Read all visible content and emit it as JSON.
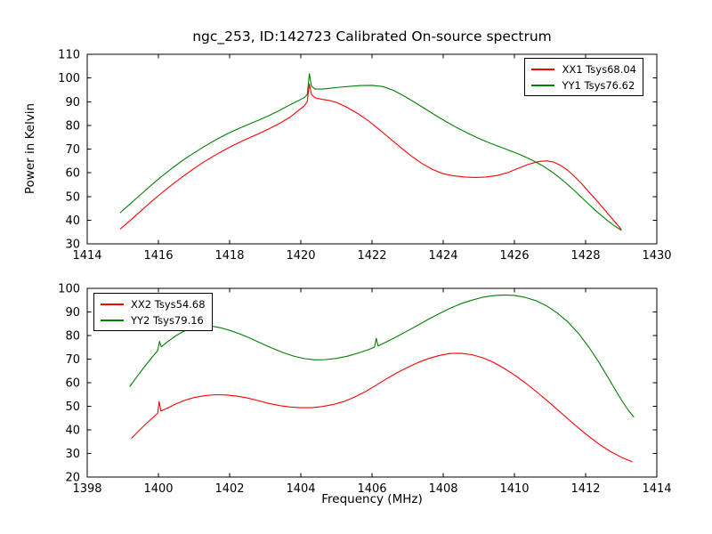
{
  "figure": {
    "title": "ngc_253, ID:142723 Calibrated On-source spectrum",
    "background": "#ffffff",
    "axis_color": "#000000"
  },
  "chart_data": [
    {
      "id": "top-spectrum",
      "type": "line",
      "title": "ngc_253, ID:142723 Calibrated On-source spectrum",
      "xlabel": "",
      "ylabel": "Power in Kelvin",
      "xlim": [
        1414,
        1430
      ],
      "ylim": [
        30,
        110
      ],
      "xticks": [
        1414,
        1416,
        1418,
        1420,
        1422,
        1424,
        1426,
        1428,
        1430
      ],
      "yticks": [
        30,
        40,
        50,
        60,
        70,
        80,
        90,
        100,
        110
      ],
      "grid": false,
      "legend_position": "top-right",
      "series": [
        {
          "name": "XX1 Tsys68.04",
          "color": "#ff0000",
          "points": [
            [
              1414.93,
              36.3
            ],
            [
              1415.2,
              39.8
            ],
            [
              1415.5,
              43.8
            ],
            [
              1415.8,
              47.8
            ],
            [
              1416.1,
              51.6
            ],
            [
              1416.4,
              55.2
            ],
            [
              1416.7,
              58.6
            ],
            [
              1417.0,
              61.8
            ],
            [
              1417.3,
              64.8
            ],
            [
              1417.6,
              67.5
            ],
            [
              1417.9,
              70.0
            ],
            [
              1418.2,
              72.3
            ],
            [
              1418.5,
              74.4
            ],
            [
              1418.8,
              76.4
            ],
            [
              1419.1,
              78.5
            ],
            [
              1419.4,
              80.8
            ],
            [
              1419.7,
              83.5
            ],
            [
              1419.95,
              86.5
            ],
            [
              1420.1,
              88.3
            ],
            [
              1420.18,
              90.0
            ],
            [
              1420.24,
              97.5
            ],
            [
              1420.3,
              93.0
            ],
            [
              1420.4,
              91.6
            ],
            [
              1420.6,
              91.0
            ],
            [
              1420.8,
              90.5
            ],
            [
              1421.0,
              89.7
            ],
            [
              1421.3,
              87.6
            ],
            [
              1421.6,
              85.0
            ],
            [
              1421.9,
              81.9
            ],
            [
              1422.2,
              78.3
            ],
            [
              1422.5,
              74.5
            ],
            [
              1422.8,
              70.7
            ],
            [
              1423.1,
              67.1
            ],
            [
              1423.4,
              63.9
            ],
            [
              1423.7,
              61.4
            ],
            [
              1424.0,
              59.6
            ],
            [
              1424.3,
              58.7
            ],
            [
              1424.6,
              58.2
            ],
            [
              1424.9,
              58.0
            ],
            [
              1425.2,
              58.2
            ],
            [
              1425.5,
              58.8
            ],
            [
              1425.8,
              60.0
            ],
            [
              1426.1,
              61.8
            ],
            [
              1426.4,
              63.6
            ],
            [
              1426.7,
              64.8
            ],
            [
              1426.9,
              65.0
            ],
            [
              1427.1,
              64.5
            ],
            [
              1427.3,
              63.1
            ],
            [
              1427.5,
              61.0
            ],
            [
              1427.7,
              58.3
            ],
            [
              1427.9,
              55.2
            ],
            [
              1428.1,
              51.8
            ],
            [
              1428.35,
              47.6
            ],
            [
              1428.6,
              43.2
            ],
            [
              1428.8,
              39.6
            ],
            [
              1429.0,
              36.2
            ]
          ]
        },
        {
          "name": "YY1 Tsys76.62",
          "color": "#008000",
          "points": [
            [
              1414.93,
              43.2
            ],
            [
              1415.2,
              46.8
            ],
            [
              1415.5,
              50.8
            ],
            [
              1415.8,
              54.8
            ],
            [
              1416.1,
              58.6
            ],
            [
              1416.4,
              62.1
            ],
            [
              1416.7,
              65.4
            ],
            [
              1417.0,
              68.4
            ],
            [
              1417.3,
              71.2
            ],
            [
              1417.6,
              73.8
            ],
            [
              1417.9,
              76.2
            ],
            [
              1418.2,
              78.3
            ],
            [
              1418.5,
              80.2
            ],
            [
              1418.8,
              82.1
            ],
            [
              1419.1,
              84.1
            ],
            [
              1419.4,
              86.3
            ],
            [
              1419.7,
              88.7
            ],
            [
              1419.95,
              90.6
            ],
            [
              1420.1,
              91.8
            ],
            [
              1420.18,
              93.0
            ],
            [
              1420.24,
              101.8
            ],
            [
              1420.3,
              96.5
            ],
            [
              1420.4,
              95.3
            ],
            [
              1420.6,
              95.3
            ],
            [
              1420.8,
              95.6
            ],
            [
              1421.1,
              96.1
            ],
            [
              1421.4,
              96.5
            ],
            [
              1421.7,
              96.8
            ],
            [
              1422.0,
              96.9
            ],
            [
              1422.3,
              96.4
            ],
            [
              1422.6,
              94.8
            ],
            [
              1422.9,
              92.4
            ],
            [
              1423.2,
              89.7
            ],
            [
              1423.5,
              86.9
            ],
            [
              1423.8,
              84.1
            ],
            [
              1424.1,
              81.4
            ],
            [
              1424.4,
              78.9
            ],
            [
              1424.7,
              76.6
            ],
            [
              1425.0,
              74.5
            ],
            [
              1425.3,
              72.6
            ],
            [
              1425.6,
              70.9
            ],
            [
              1425.9,
              69.2
            ],
            [
              1426.2,
              67.4
            ],
            [
              1426.5,
              65.3
            ],
            [
              1426.8,
              62.9
            ],
            [
              1427.1,
              59.9
            ],
            [
              1427.4,
              56.3
            ],
            [
              1427.7,
              52.3
            ],
            [
              1428.0,
              48.0
            ],
            [
              1428.3,
              43.8
            ],
            [
              1428.6,
              40.0
            ],
            [
              1428.8,
              37.7
            ],
            [
              1429.0,
              35.8
            ]
          ]
        }
      ]
    },
    {
      "id": "bottom-spectrum",
      "type": "line",
      "title": "",
      "xlabel": "Frequency (MHz)",
      "ylabel": "",
      "xlim": [
        1398,
        1414
      ],
      "ylim": [
        20,
        100
      ],
      "xticks": [
        1398,
        1400,
        1402,
        1404,
        1406,
        1408,
        1410,
        1412,
        1414
      ],
      "yticks": [
        20,
        30,
        40,
        50,
        60,
        70,
        80,
        90,
        100
      ],
      "grid": false,
      "legend_position": "top-left",
      "series": [
        {
          "name": "XX2 Tsys54.68",
          "color": "#ff0000",
          "points": [
            [
              1399.25,
              36.5
            ],
            [
              1399.45,
              39.6
            ],
            [
              1399.65,
              42.6
            ],
            [
              1399.85,
              45.3
            ],
            [
              1399.98,
              47.0
            ],
            [
              1400.02,
              52.0
            ],
            [
              1400.07,
              48.0
            ],
            [
              1400.25,
              49.2
            ],
            [
              1400.5,
              51.1
            ],
            [
              1400.75,
              52.6
            ],
            [
              1401.0,
              53.7
            ],
            [
              1401.3,
              54.5
            ],
            [
              1401.6,
              54.9
            ],
            [
              1401.9,
              54.8
            ],
            [
              1402.2,
              54.3
            ],
            [
              1402.5,
              53.5
            ],
            [
              1402.8,
              52.4
            ],
            [
              1403.1,
              51.2
            ],
            [
              1403.4,
              50.3
            ],
            [
              1403.7,
              49.7
            ],
            [
              1404.0,
              49.4
            ],
            [
              1404.3,
              49.4
            ],
            [
              1404.6,
              49.9
            ],
            [
              1404.9,
              50.7
            ],
            [
              1405.2,
              52.0
            ],
            [
              1405.5,
              53.8
            ],
            [
              1405.8,
              56.1
            ],
            [
              1406.1,
              58.8
            ],
            [
              1406.4,
              61.6
            ],
            [
              1406.7,
              64.2
            ],
            [
              1407.0,
              66.5
            ],
            [
              1407.3,
              68.6
            ],
            [
              1407.6,
              70.3
            ],
            [
              1407.9,
              71.6
            ],
            [
              1408.2,
              72.4
            ],
            [
              1408.5,
              72.5
            ],
            [
              1408.8,
              71.9
            ],
            [
              1409.1,
              70.6
            ],
            [
              1409.4,
              68.7
            ],
            [
              1409.7,
              66.2
            ],
            [
              1410.0,
              63.3
            ],
            [
              1410.3,
              60.0
            ],
            [
              1410.6,
              56.4
            ],
            [
              1410.9,
              52.6
            ],
            [
              1411.2,
              48.7
            ],
            [
              1411.5,
              44.7
            ],
            [
              1411.8,
              40.8
            ],
            [
              1412.1,
              37.1
            ],
            [
              1412.4,
              33.7
            ],
            [
              1412.7,
              30.8
            ],
            [
              1413.0,
              28.4
            ],
            [
              1413.3,
              26.5
            ]
          ]
        },
        {
          "name": "YY2 Tsys79.16",
          "color": "#008000",
          "points": [
            [
              1399.2,
              58.5
            ],
            [
              1399.4,
              62.6
            ],
            [
              1399.6,
              66.6
            ],
            [
              1399.8,
              70.4
            ],
            [
              1399.98,
              73.6
            ],
            [
              1400.03,
              77.5
            ],
            [
              1400.08,
              75.2
            ],
            [
              1400.25,
              77.3
            ],
            [
              1400.5,
              80.0
            ],
            [
              1400.75,
              82.1
            ],
            [
              1401.0,
              83.5
            ],
            [
              1401.25,
              84.1
            ],
            [
              1401.5,
              84.0
            ],
            [
              1401.75,
              83.3
            ],
            [
              1402.0,
              82.2
            ],
            [
              1402.3,
              80.6
            ],
            [
              1402.6,
              78.7
            ],
            [
              1402.9,
              76.6
            ],
            [
              1403.2,
              74.6
            ],
            [
              1403.5,
              72.8
            ],
            [
              1403.8,
              71.3
            ],
            [
              1404.1,
              70.2
            ],
            [
              1404.4,
              69.7
            ],
            [
              1404.7,
              69.8
            ],
            [
              1405.0,
              70.3
            ],
            [
              1405.3,
              71.2
            ],
            [
              1405.6,
              72.5
            ],
            [
              1405.9,
              74.0
            ],
            [
              1406.07,
              75.1
            ],
            [
              1406.12,
              78.8
            ],
            [
              1406.17,
              75.6
            ],
            [
              1406.4,
              77.3
            ],
            [
              1406.7,
              79.6
            ],
            [
              1407.0,
              82.0
            ],
            [
              1407.3,
              84.5
            ],
            [
              1407.6,
              87.0
            ],
            [
              1407.9,
              89.4
            ],
            [
              1408.2,
              91.6
            ],
            [
              1408.5,
              93.5
            ],
            [
              1408.8,
              95.0
            ],
            [
              1409.1,
              96.2
            ],
            [
              1409.4,
              96.9
            ],
            [
              1409.7,
              97.2
            ],
            [
              1410.0,
              97.0
            ],
            [
              1410.3,
              96.2
            ],
            [
              1410.6,
              94.8
            ],
            [
              1410.9,
              92.6
            ],
            [
              1411.2,
              89.6
            ],
            [
              1411.5,
              85.8
            ],
            [
              1411.8,
              80.9
            ],
            [
              1412.1,
              74.9
            ],
            [
              1412.4,
              68.0
            ],
            [
              1412.7,
              60.4
            ],
            [
              1413.0,
              52.8
            ],
            [
              1413.2,
              48.3
            ],
            [
              1413.35,
              45.5
            ]
          ]
        }
      ]
    }
  ]
}
